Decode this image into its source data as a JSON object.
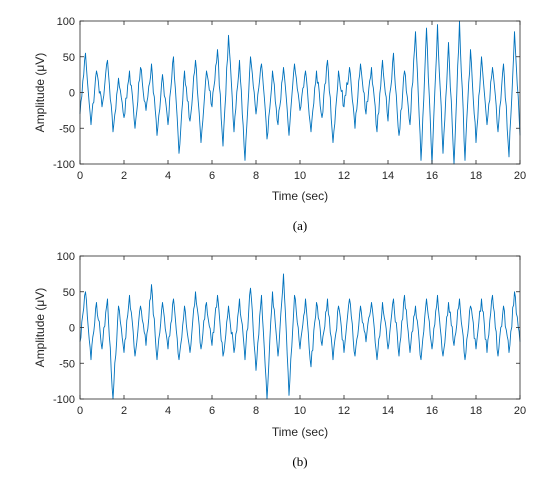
{
  "chart_data": [
    {
      "type": "line",
      "caption": "(a)",
      "xlabel": "Time (sec)",
      "ylabel": "Amplitude (μV)",
      "xlim": [
        0,
        20
      ],
      "ylim": [
        -100,
        100
      ],
      "xticks": [
        0,
        2,
        4,
        6,
        8,
        10,
        12,
        14,
        16,
        18,
        20
      ],
      "yticks": [
        -100,
        -50,
        0,
        50,
        100
      ],
      "color": "#0072BD",
      "series": [
        {
          "x": [
            0,
            0.25,
            0.5,
            0.75,
            1,
            1.25,
            1.5,
            1.75,
            2,
            2.25,
            2.5,
            2.75,
            3,
            3.25,
            3.5,
            3.75,
            4,
            4.25,
            4.5,
            4.75,
            5,
            5.25,
            5.5,
            5.75,
            6,
            6.25,
            6.5,
            6.75,
            7,
            7.25,
            7.5,
            7.75,
            8,
            8.25,
            8.5,
            8.75,
            9,
            9.25,
            9.5,
            9.75,
            10,
            10.25,
            10.5,
            10.75,
            11,
            11.25,
            11.5,
            11.75,
            12,
            12.25,
            12.5,
            12.75,
            13,
            13.25,
            13.5,
            13.75,
            14,
            14.25,
            14.5,
            14.75,
            15,
            15.25,
            15.5,
            15.75,
            16,
            16.25,
            16.5,
            16.75,
            17,
            17.25,
            17.5,
            17.75,
            18,
            18.25,
            18.5,
            18.75,
            19,
            19.25,
            19.5,
            19.75,
            20
          ],
          "values": [
            -30,
            55,
            -45,
            30,
            -20,
            45,
            -55,
            20,
            -35,
            30,
            -50,
            35,
            -25,
            40,
            -60,
            25,
            -45,
            50,
            -85,
            30,
            -40,
            45,
            -70,
            30,
            -20,
            60,
            -75,
            80,
            -55,
            45,
            -95,
            50,
            -30,
            40,
            -65,
            30,
            -45,
            35,
            -60,
            40,
            -25,
            30,
            -55,
            30,
            -35,
            45,
            -70,
            30,
            -20,
            35,
            -50,
            40,
            -30,
            35,
            -55,
            45,
            -40,
            55,
            -60,
            30,
            -45,
            85,
            -95,
            90,
            -100,
            95,
            -85,
            70,
            -100,
            100,
            -95,
            60,
            -70,
            50,
            -45,
            35,
            -55,
            40,
            -90,
            85,
            -60
          ]
        }
      ]
    },
    {
      "type": "line",
      "caption": "(b)",
      "xlabel": "Time (sec)",
      "ylabel": "Amplitude (μV)",
      "xlim": [
        0,
        20
      ],
      "ylim": [
        -100,
        100
      ],
      "xticks": [
        0,
        2,
        4,
        6,
        8,
        10,
        12,
        14,
        16,
        18,
        20
      ],
      "yticks": [
        -100,
        -50,
        0,
        50,
        100
      ],
      "color": "#0072BD",
      "series": [
        {
          "x": [
            0,
            0.25,
            0.5,
            0.75,
            1,
            1.25,
            1.5,
            1.75,
            2,
            2.25,
            2.5,
            2.75,
            3,
            3.25,
            3.5,
            3.75,
            4,
            4.25,
            4.5,
            4.75,
            5,
            5.25,
            5.5,
            5.75,
            6,
            6.25,
            6.5,
            6.75,
            7,
            7.25,
            7.5,
            7.75,
            8,
            8.25,
            8.5,
            8.75,
            9,
            9.25,
            9.5,
            9.75,
            10,
            10.25,
            10.5,
            10.75,
            11,
            11.25,
            11.5,
            11.75,
            12,
            12.25,
            12.5,
            12.75,
            13,
            13.25,
            13.5,
            13.75,
            14,
            14.25,
            14.5,
            14.75,
            15,
            15.25,
            15.5,
            15.75,
            16,
            16.25,
            16.5,
            16.75,
            17,
            17.25,
            17.5,
            17.75,
            18,
            18.25,
            18.5,
            18.75,
            19,
            19.25,
            19.5,
            19.75,
            20
          ],
          "values": [
            -20,
            50,
            -45,
            35,
            -30,
            40,
            -100,
            30,
            -35,
            45,
            -40,
            30,
            -25,
            60,
            -45,
            35,
            -30,
            40,
            -45,
            30,
            -35,
            50,
            -30,
            35,
            -25,
            45,
            -40,
            30,
            -35,
            40,
            -45,
            55,
            -60,
            45,
            -100,
            50,
            -40,
            75,
            -95,
            45,
            -30,
            40,
            -55,
            35,
            -25,
            40,
            -45,
            30,
            -35,
            40,
            -40,
            30,
            -20,
            35,
            -45,
            35,
            -30,
            40,
            -40,
            45,
            -35,
            30,
            -45,
            40,
            -30,
            45,
            -40,
            35,
            -25,
            40,
            -45,
            30,
            -30,
            40,
            -35,
            45,
            -40,
            30,
            -35,
            50,
            -20
          ]
        }
      ]
    }
  ]
}
